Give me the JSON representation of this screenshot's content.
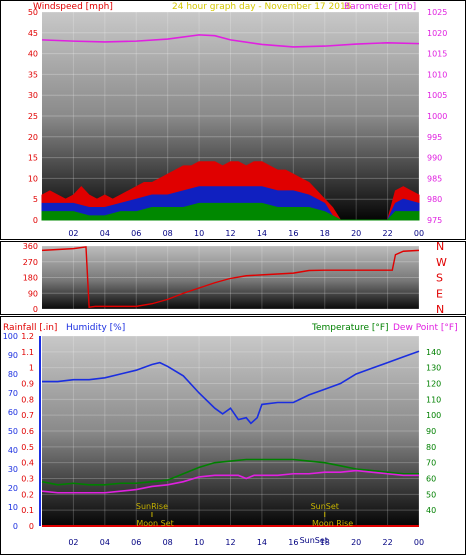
{
  "header": {
    "windspeed_label": "Windspeed [mph]",
    "date_label": "24 hour graph day - November 17 2016",
    "barometer_label": "Barometer [mb]"
  },
  "colors": {
    "windspeed": "#e00000",
    "wind_avg": "#1020c0",
    "wind_low": "#008800",
    "barometer": "#e020e0",
    "direction": "#e00000",
    "rainfall": "#e00000",
    "humidity": "#1a2ee0",
    "temperature": "#008000",
    "dewpoint": "#e020e0",
    "sun_moon": "#c8b400"
  },
  "chart_data": [
    {
      "type": "area",
      "title": "24 hour graph day - November 17 2016",
      "xlabel": "",
      "ylabel": "Windspeed [mph]",
      "y2label": "Barometer [mb]",
      "x_ticks": [
        "02",
        "04",
        "06",
        "08",
        "10",
        "12",
        "14",
        "16",
        "18",
        "20",
        "22",
        "00"
      ],
      "ylim": [
        0,
        50
      ],
      "y_ticks": [
        0,
        5,
        10,
        15,
        20,
        25,
        30,
        35,
        40,
        45,
        50
      ],
      "y2lim": [
        975,
        1025
      ],
      "y2_ticks": [
        975,
        980,
        985,
        990,
        995,
        1000,
        1005,
        1010,
        1015,
        1020,
        1025
      ],
      "series": [
        {
          "name": "Windspeed [mph]",
          "axis": "left",
          "color": "#e00000",
          "x": [
            0,
            0.5,
            1,
            1.5,
            2,
            2.5,
            3,
            3.5,
            4,
            4.5,
            5,
            5.5,
            6,
            6.5,
            7,
            7.5,
            8,
            8.5,
            9,
            9.5,
            10,
            10.5,
            11,
            11.5,
            12,
            12.5,
            13,
            13.5,
            14,
            14.5,
            15,
            15.5,
            16,
            16.5,
            17,
            17.5,
            18,
            18.5,
            19,
            19.5,
            20,
            20.5,
            21,
            21.5,
            22,
            22.5,
            23,
            23.5,
            24
          ],
          "values": [
            6,
            7,
            6,
            5,
            6,
            8,
            6,
            5,
            6,
            5,
            6,
            7,
            8,
            9,
            9,
            10,
            11,
            12,
            13,
            13,
            14,
            14,
            14,
            13,
            14,
            14,
            13,
            14,
            14,
            13,
            12,
            12,
            11,
            10,
            9,
            7,
            5,
            3,
            0,
            0,
            0,
            0,
            0,
            0,
            0,
            7,
            8,
            7,
            6
          ]
        },
        {
          "name": "Average wind",
          "axis": "left",
          "color": "#1020c0",
          "x": [
            0,
            1,
            2,
            3,
            4,
            5,
            6,
            7,
            8,
            9,
            10,
            11,
            12,
            13,
            14,
            15,
            16,
            17,
            18,
            18.5,
            19,
            22,
            22.5,
            23,
            24
          ],
          "values": [
            4,
            4,
            4,
            3,
            3,
            4,
            5,
            6,
            6,
            7,
            8,
            8,
            8,
            8,
            8,
            7,
            7,
            6,
            4,
            1,
            0,
            0,
            4,
            5,
            4
          ]
        },
        {
          "name": "Low wind",
          "axis": "left",
          "color": "#008800",
          "x": [
            0,
            1,
            2,
            3,
            4,
            5,
            6,
            7,
            8,
            9,
            10,
            11,
            12,
            13,
            14,
            15,
            16,
            17,
            18,
            18.5,
            19,
            22,
            22.5,
            23,
            24
          ],
          "values": [
            2,
            2,
            2,
            1,
            1,
            2,
            2,
            3,
            3,
            3,
            4,
            4,
            4,
            4,
            4,
            3,
            3,
            3,
            2,
            1,
            0,
            0,
            2,
            2,
            2
          ]
        },
        {
          "name": "Barometer [mb]",
          "axis": "right",
          "color": "#e020e0",
          "x": [
            0,
            2,
            4,
            6,
            8,
            10,
            11,
            12,
            14,
            16,
            18,
            20,
            22,
            24
          ],
          "values": [
            1018.3,
            1018.0,
            1017.8,
            1018.0,
            1018.5,
            1019.5,
            1019.3,
            1018.3,
            1017.2,
            1016.6,
            1016.8,
            1017.3,
            1017.6,
            1017.4
          ]
        }
      ]
    },
    {
      "type": "line",
      "title": "",
      "ylabel": "",
      "x_ticks": [
        "02",
        "04",
        "06",
        "08",
        "10",
        "12",
        "14",
        "16",
        "18",
        "20",
        "22",
        "00"
      ],
      "ylim": [
        0,
        360
      ],
      "y_ticks": [
        0,
        90,
        180,
        270,
        360
      ],
      "right_labels": [
        "N",
        "W",
        "S",
        "E",
        "N"
      ],
      "series": [
        {
          "name": "Wind direction",
          "color": "#e00000",
          "x": [
            0,
            1,
            2,
            2.8,
            3.0,
            3.4,
            4,
            5,
            6,
            7,
            8,
            9,
            10,
            11,
            12,
            13,
            14,
            15,
            16,
            17,
            18,
            19,
            20,
            21,
            22,
            22.3,
            22.5,
            23,
            24
          ],
          "values": [
            335,
            340,
            345,
            355,
            10,
            15,
            15,
            15,
            15,
            30,
            55,
            90,
            120,
            150,
            175,
            190,
            195,
            200,
            205,
            220,
            222,
            222,
            222,
            222,
            222,
            222,
            310,
            330,
            335
          ]
        }
      ]
    },
    {
      "type": "line",
      "title": "",
      "x_ticks": [
        "02",
        "04",
        "06",
        "08",
        "10",
        "12",
        "14",
        "16",
        "18",
        "20",
        "22",
        "00"
      ],
      "left_axes": [
        {
          "label": "Rainfall [.in]",
          "ylim": [
            0,
            1.2
          ],
          "ticks": [
            0,
            0.1,
            0.2,
            0.3,
            0.4,
            0.5,
            0.6,
            0.7,
            0.8,
            0.9,
            1,
            1.1,
            1.2
          ]
        },
        {
          "label": "Humidity [%]",
          "ylim": [
            0,
            100
          ],
          "ticks": [
            0,
            10,
            20,
            30,
            40,
            50,
            60,
            70,
            80,
            90,
            100
          ]
        }
      ],
      "right_axis": {
        "label": "Temperature [°F]",
        "label2": "Dew Point [°F]",
        "ylim": [
          30,
          150
        ],
        "ticks": [
          40,
          50,
          60,
          70,
          80,
          90,
          100,
          110,
          120,
          130,
          140
        ]
      },
      "series": [
        {
          "name": "Humidity [%]",
          "axis": "humidity",
          "color": "#1a2ee0",
          "x": [
            0,
            1,
            2,
            3,
            4,
            5,
            6,
            7,
            7.5,
            8,
            9,
            10,
            11,
            11.5,
            12,
            12.5,
            13,
            13.3,
            13.7,
            14,
            15,
            16,
            17,
            18,
            19,
            20,
            21,
            22,
            23,
            24
          ],
          "values": [
            76,
            76,
            77,
            77,
            78,
            80,
            82,
            85,
            86,
            84,
            79,
            70,
            62,
            59,
            62,
            56,
            57,
            54,
            57,
            64,
            65,
            65,
            69,
            72,
            75,
            80,
            83,
            86,
            89,
            92
          ]
        },
        {
          "name": "Temperature [°F]",
          "axis": "temp",
          "color": "#008000",
          "x": [
            0,
            1,
            2,
            3,
            4,
            5,
            6,
            7,
            8,
            9,
            10,
            11,
            12,
            13,
            14,
            15,
            16,
            17,
            18,
            19,
            20,
            21,
            22,
            23,
            24
          ],
          "values": [
            58,
            56,
            57,
            56,
            56,
            57,
            57,
            58,
            59,
            63,
            67,
            70,
            71,
            72,
            72,
            72,
            72,
            71,
            70,
            68,
            66,
            65,
            64,
            63,
            63
          ]
        },
        {
          "name": "Dew Point [°F]",
          "axis": "temp",
          "color": "#e020e0",
          "x": [
            0,
            1,
            2,
            3,
            4,
            5,
            6,
            7,
            8,
            9,
            10,
            11,
            12,
            12.5,
            13,
            13.5,
            14,
            15,
            16,
            17,
            18,
            19,
            20,
            21,
            22,
            23,
            24
          ],
          "values": [
            52,
            51,
            51,
            51,
            51,
            52,
            53,
            55,
            56,
            58,
            61,
            62,
            62,
            62,
            60,
            62,
            62,
            62,
            63,
            63,
            64,
            64,
            65,
            64,
            63,
            62,
            62
          ]
        },
        {
          "name": "Rainfall [.in]",
          "axis": "rain",
          "color": "#e00000",
          "x": [
            0,
            24
          ],
          "values": [
            0,
            0
          ]
        }
      ],
      "annotations": [
        {
          "text": "SunRise",
          "x": 7.0,
          "row": "upper"
        },
        {
          "text": "SunSet",
          "x": 18.0,
          "row": "upper"
        },
        {
          "text": "Moon Set",
          "x": 7.2,
          "row": "lower"
        },
        {
          "text": "Moon Rise",
          "x": 18.5,
          "row": "lower"
        },
        {
          "text": "SunSet",
          "x": 17.3,
          "row": "bottom"
        }
      ]
    }
  ]
}
